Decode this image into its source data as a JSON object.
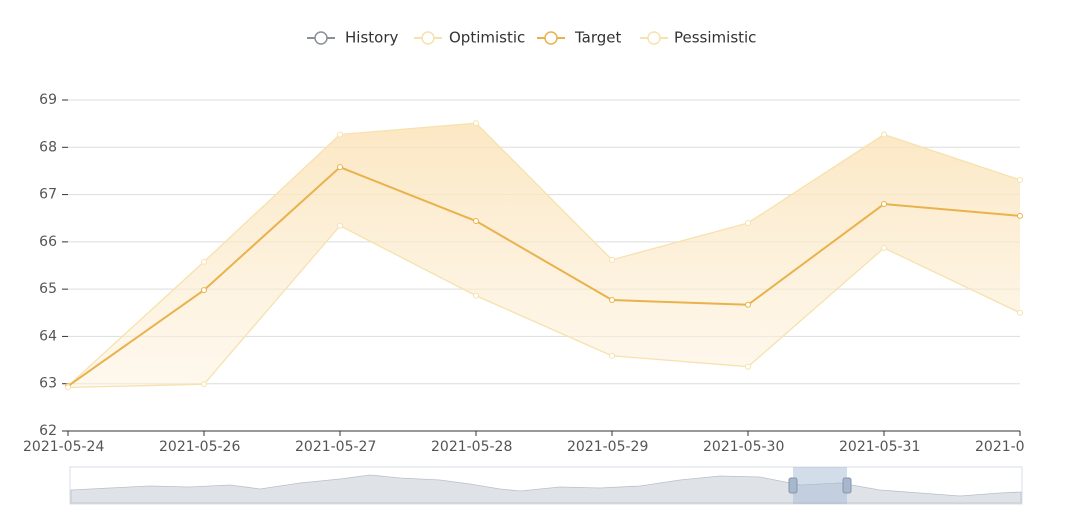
{
  "chart_data": {
    "type": "line",
    "categories": [
      "2021-05-24",
      "2021-05-26",
      "2021-05-27",
      "2021-05-28",
      "2021-05-29",
      "2021-05-30",
      "2021-05-31",
      "2021-0"
    ],
    "series": [
      {
        "name": "History",
        "color": "#8a8f99",
        "values": [
          null,
          null,
          null,
          null,
          null,
          null,
          null,
          null
        ]
      },
      {
        "name": "Optimistic",
        "color": "#f6e2ae",
        "values": [
          62.95,
          65.58,
          68.27,
          68.51,
          65.62,
          66.4,
          68.27,
          67.31
        ]
      },
      {
        "name": "Target",
        "color": "#e9b24c",
        "values": [
          62.95,
          64.98,
          67.58,
          66.44,
          64.77,
          64.67,
          66.8,
          66.55
        ]
      },
      {
        "name": "Pessimistic",
        "color": "#f6e2ae",
        "values": [
          62.92,
          62.99,
          66.34,
          64.86,
          63.59,
          63.36,
          65.87,
          64.5
        ]
      }
    ],
    "ylim": [
      62,
      69
    ],
    "yticks": [
      62,
      63,
      64,
      65,
      66,
      67,
      68,
      69
    ],
    "grid": true
  }
}
